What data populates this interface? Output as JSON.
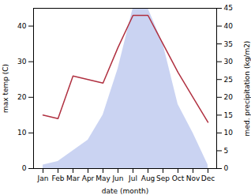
{
  "chart_data": {
    "type": "line",
    "xlabel": "date (month)",
    "ylabel": "max temp (C)",
    "y2label": "med. precipitation (kg/m2)",
    "categories": [
      "Jan",
      "Feb",
      "Mar",
      "Apr",
      "May",
      "Jun",
      "Jul",
      "Aug",
      "Sep",
      "Oct",
      "Nov",
      "Dec"
    ],
    "series": [
      {
        "type": "area",
        "axis": "y2",
        "color": "#b8c4ed",
        "values": [
          1,
          2,
          5,
          8,
          15,
          28,
          45,
          45,
          35,
          18,
          10,
          1
        ]
      },
      {
        "type": "line",
        "color": "#b03040",
        "values": [
          15,
          14,
          26,
          25,
          24,
          34,
          43,
          43,
          35,
          27,
          20,
          13
        ]
      }
    ],
    "ylim": [
      0,
      45
    ],
    "yticks": [
      0,
      10,
      20,
      30,
      40
    ],
    "y2lim": [
      0,
      45
    ],
    "y2ticks": [
      0,
      5,
      10,
      15,
      20,
      25,
      30,
      35,
      40,
      45
    ],
    "grid": false
  }
}
